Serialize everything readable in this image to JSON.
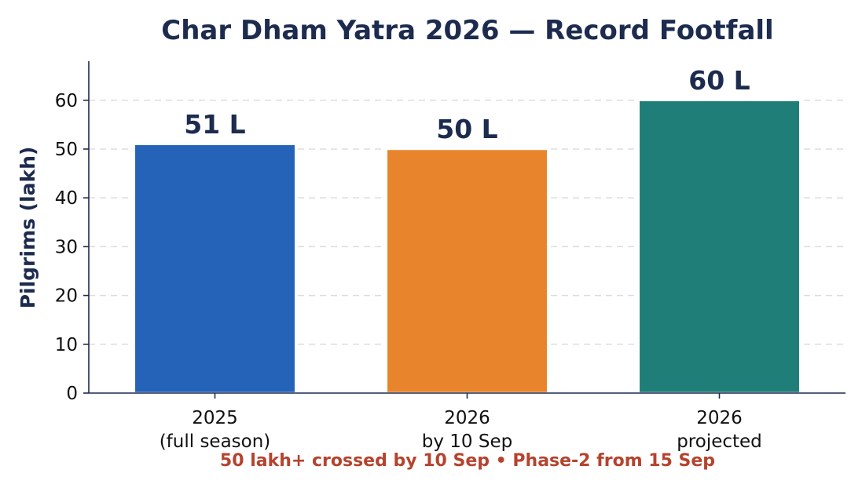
{
  "chart_data": {
    "type": "bar",
    "title": "Char Dham Yatra 2026 — Record Footfall",
    "ylabel": "Pilgrims (lakh)",
    "xlabel": "",
    "ylim": [
      0,
      68
    ],
    "yticks": [
      0,
      10,
      20,
      30,
      40,
      50,
      60
    ],
    "grid": "y-dashed",
    "categories": [
      [
        "2025",
        "(full season)"
      ],
      [
        "2026",
        "by 10 Sep"
      ],
      [
        "2026",
        "projected"
      ]
    ],
    "values": [
      51,
      50,
      60
    ],
    "data_labels": [
      "51 L",
      "50 L",
      "60 L"
    ],
    "colors": [
      "#2563b8",
      "#e8852c",
      "#1f7e78"
    ],
    "footnote": "50 lakh+ crossed by 10 Sep  •  Phase-2 from 15 Sep",
    "footnote_color": "#b5432e"
  }
}
